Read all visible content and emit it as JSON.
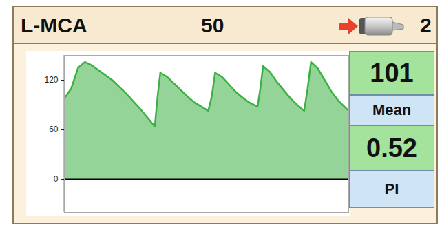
{
  "header": {
    "vessel": "L-MCA",
    "depth": 50,
    "gate": 2
  },
  "panel": [
    {
      "value": 101,
      "label": "Mean"
    },
    {
      "value": 0.52,
      "label": "PI"
    }
  ],
  "chart_data": {
    "type": "area",
    "x": [
      0,
      10,
      20,
      30,
      40,
      50,
      60,
      70,
      80,
      90,
      100,
      110,
      120,
      132,
      136,
      140,
      150,
      160,
      170,
      180,
      190,
      200,
      210,
      215,
      220,
      230,
      240,
      250,
      260,
      270,
      282,
      286,
      290,
      300,
      310,
      320,
      330,
      340,
      350,
      355,
      360,
      370,
      380,
      390,
      400,
      415
    ],
    "values": [
      98,
      110,
      135,
      142,
      138,
      132,
      126,
      120,
      112,
      104,
      95,
      86,
      76,
      64,
      100,
      129,
      124,
      116,
      108,
      100,
      93,
      88,
      83,
      100,
      129,
      124,
      115,
      106,
      99,
      93,
      88,
      110,
      137,
      130,
      118,
      108,
      98,
      90,
      83,
      110,
      142,
      134,
      120,
      106,
      95,
      83
    ],
    "color": "#3cb043",
    "xlim": [
      0,
      415
    ],
    "ylim": [
      -40,
      150
    ],
    "yticks": [
      0,
      60,
      120
    ],
    "tick_labels": "y"
  }
}
